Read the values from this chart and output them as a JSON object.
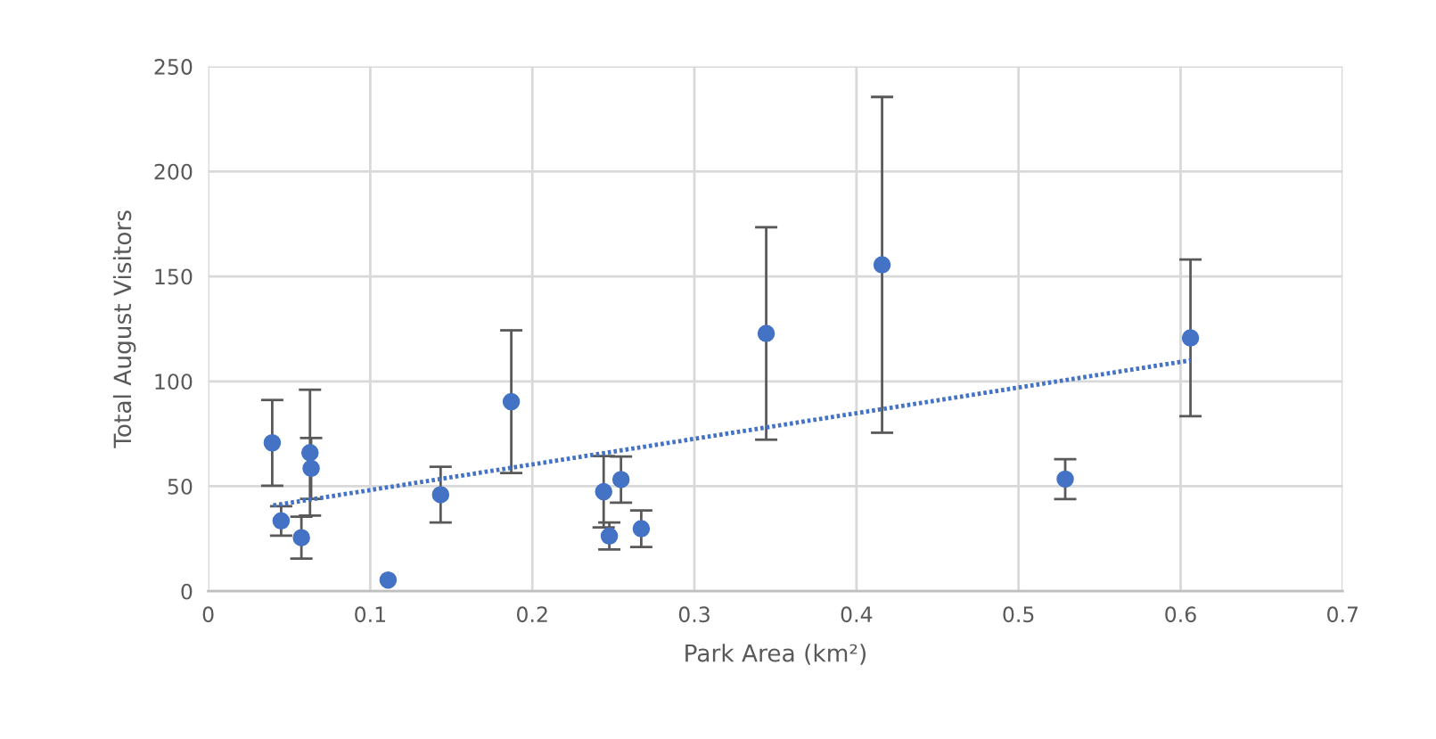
{
  "chart_data": {
    "type": "scatter",
    "xlabel": "Park Area (km²)",
    "ylabel": "Total August Visitors",
    "xlim": [
      0,
      0.7
    ],
    "xticks": [
      0,
      0.1,
      0.2,
      0.3,
      0.4,
      0.5,
      0.6,
      0.7
    ],
    "ylim": [
      0,
      250
    ],
    "yticks": [
      0,
      50,
      100,
      150,
      200,
      250
    ],
    "grid": true,
    "series": [
      {
        "color": "#4472c4",
        "marker": "circle",
        "x": [
          0.0395,
          0.045,
          0.0575,
          0.0628,
          0.0635,
          0.111,
          0.1434,
          0.187,
          0.244,
          0.2475,
          0.2547,
          0.2672,
          0.3443,
          0.4158,
          0.5288,
          0.6061
        ],
        "values": [
          70.7,
          33.5,
          25.5,
          66,
          58.5,
          5.3,
          46,
          90.3,
          47.4,
          26.3,
          53.2,
          29.8,
          122.8,
          155.5,
          53.4,
          120.7
        ],
        "errors": [
          20.4,
          7,
          10,
          30,
          14.5,
          null,
          13.3,
          34,
          17,
          6.4,
          11,
          8.7,
          50.6,
          80,
          9.5,
          37.3
        ]
      },
      {
        "type": "line",
        "color": "#4472c4",
        "marker": "none",
        "line_style": "dotted",
        "x": [
          0.0395,
          0.6061
        ],
        "values": [
          40.8,
          110
        ]
      }
    ]
  }
}
